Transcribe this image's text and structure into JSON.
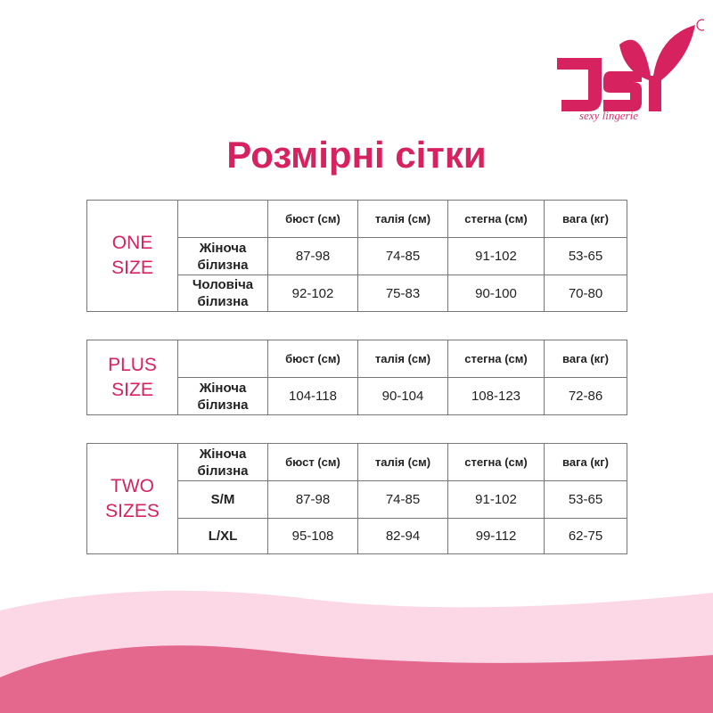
{
  "brand": {
    "logo_text": "JSY",
    "registered": "®",
    "tagline": "sexy lingerie",
    "color": "#d6235f"
  },
  "title": "Розмірні сітки",
  "headers": [
    "бюст (см)",
    "талія (см)",
    "стегна (см)",
    "вага (кг)"
  ],
  "tables": [
    {
      "label1": "ONE",
      "label2": "SIZE",
      "header_label": "",
      "rows": [
        {
          "name1": "Жіноча",
          "name2": "білизна",
          "values": [
            "87-98",
            "74-85",
            "91-102",
            "53-65"
          ]
        },
        {
          "name1": "Чоловіча",
          "name2": "білизна",
          "values": [
            "92-102",
            "75-83",
            "90-100",
            "70-80"
          ]
        }
      ]
    },
    {
      "label1": "PLUS",
      "label2": "SIZE",
      "header_label": "",
      "rows": [
        {
          "name1": "Жіноча",
          "name2": "білизна",
          "values": [
            "104-118",
            "90-104",
            "108-123",
            "72-86"
          ]
        }
      ]
    },
    {
      "label1": "TWO",
      "label2": "SIZES",
      "header_label1": "Жіноча",
      "header_label2": "білизна",
      "rows": [
        {
          "name1": "S/M",
          "name2": "",
          "values": [
            "87-98",
            "74-85",
            "91-102",
            "53-65"
          ]
        },
        {
          "name1": "L/XL",
          "name2": "",
          "values": [
            "95-108",
            "82-94",
            "99-112",
            "62-75"
          ]
        }
      ]
    }
  ]
}
